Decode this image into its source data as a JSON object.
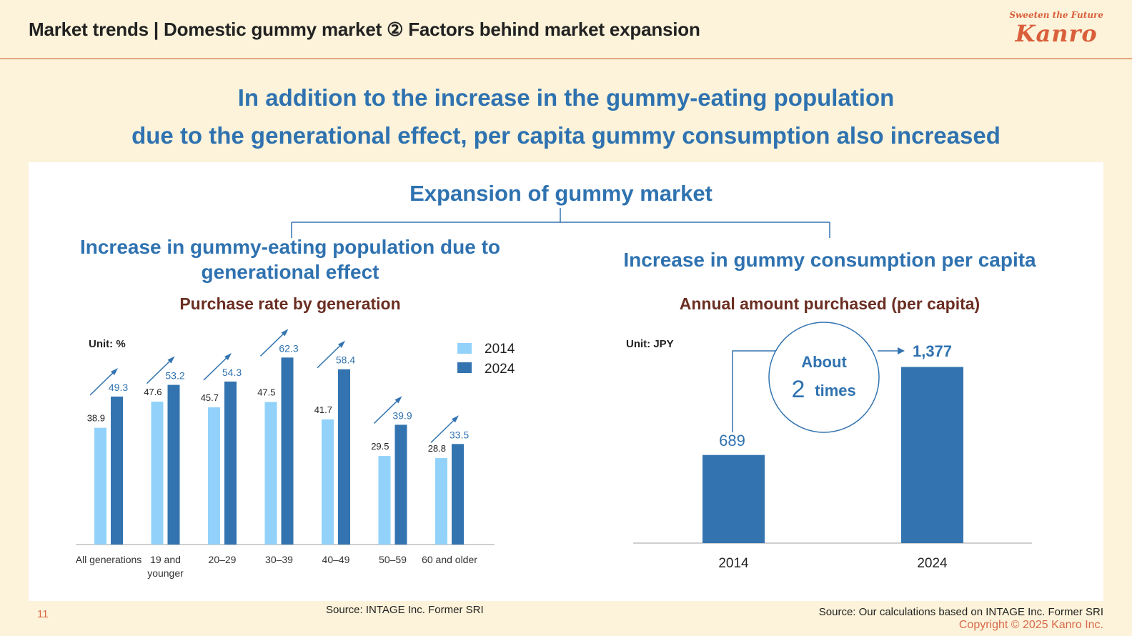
{
  "header": {
    "title": "Market trends | Domestic gummy market ② Factors behind market expansion",
    "logo_tagline": "Sweeten the Future",
    "logo_name": "Kanro"
  },
  "headline": {
    "line1": "In addition to the increase in the gummy-eating population",
    "line2": "due to the generational effect, per capita gummy consumption also increased"
  },
  "diagram": {
    "root": "Expansion of gummy market",
    "left_branch_line1": "Increase in gummy-eating population due to",
    "left_branch_line2": "generational effect",
    "right_branch": "Increase in gummy consumption per capita"
  },
  "colors": {
    "accent_blue": "#2f72b0",
    "light_blue": "#92d2fa",
    "dark_blue": "#3374b0",
    "brown_title": "#6b2e22",
    "brand_orange": "#d95f3b"
  },
  "chart_data": [
    {
      "type": "bar",
      "title": "Purchase rate by generation",
      "unit_label": "Unit: %",
      "categories": [
        "All generations",
        "19 and younger",
        "20–29",
        "30–39",
        "40–49",
        "50–59",
        "60 and older"
      ],
      "series": [
        {
          "name": "2014",
          "values": [
            38.9,
            47.6,
            45.7,
            47.5,
            41.7,
            29.5,
            28.8
          ]
        },
        {
          "name": "2024",
          "values": [
            49.3,
            53.2,
            54.3,
            62.3,
            58.4,
            39.9,
            33.5
          ]
        }
      ],
      "ylim": [
        0,
        70
      ],
      "legend": "top-right",
      "grid": false,
      "annotations": "upward arrow above each category",
      "source": "Source: INTAGE Inc. Former SRI"
    },
    {
      "type": "bar",
      "title": "Annual amount purchased (per capita)",
      "unit_label": "Unit: JPY",
      "categories": [
        "2014",
        "2024"
      ],
      "values": [
        689,
        1377
      ],
      "value_labels": [
        "689",
        "1,377"
      ],
      "ylim": [
        0,
        1600
      ],
      "annotation": {
        "line1": "About",
        "number": "2",
        "unit": "times"
      },
      "source": "Source: Our calculations based on INTAGE Inc. Former SRI"
    }
  ],
  "footer": {
    "page_number": "11",
    "copyright": "Copyright © 2025  Kanro Inc."
  }
}
